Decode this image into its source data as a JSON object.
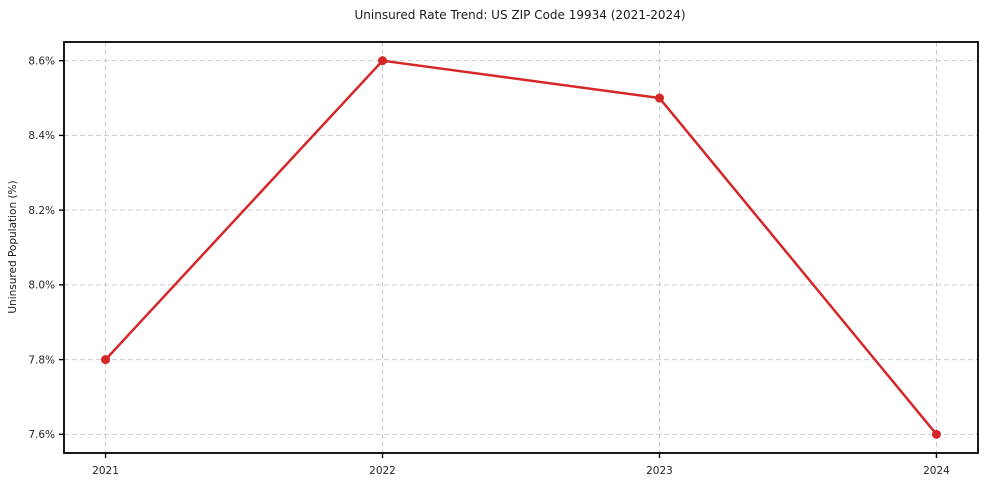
{
  "chart_data": {
    "type": "line",
    "title": "Uninsured Rate Trend: US ZIP Code 19934 (2021-2024)",
    "xlabel": "",
    "ylabel": "Uninsured Population (%)",
    "x": [
      2021,
      2022,
      2023,
      2024
    ],
    "x_tick_labels": [
      "2021",
      "2022",
      "2023",
      "2024"
    ],
    "series": [
      {
        "name": "Uninsured Population (%)",
        "values": [
          7.8,
          8.6,
          8.5,
          7.6
        ]
      }
    ],
    "y_tick_values": [
      7.6,
      7.8,
      8.0,
      8.2,
      8.4,
      8.6
    ],
    "y_tick_labels": [
      "7.6%",
      "7.8%",
      "8.0%",
      "8.2%",
      "8.4%",
      "8.6%"
    ],
    "xlim": [
      2020.85,
      2024.15
    ],
    "ylim": [
      7.55,
      8.65
    ],
    "grid": true,
    "grid_style": "dashed",
    "legend_position": "none",
    "line_color": "#d62728",
    "grid_color": "#cccccc",
    "spine_color": "#000000",
    "background_color": "#ffffff"
  }
}
